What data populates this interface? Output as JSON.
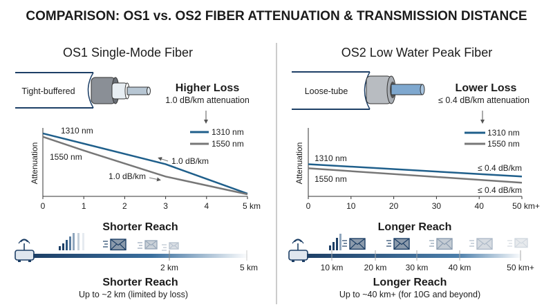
{
  "title": "COMPARISON: OS1 vs. OS2 FIBER ATTENUATION & TRANSMISSION DISTANCE",
  "colors": {
    "blue": "#1f5f8b",
    "gray": "#777777",
    "navy": "#1d3f66"
  },
  "os1": {
    "heading": "OS1 Single-Mode Fiber",
    "cable_label": "Tight-buffered",
    "loss_title": "Higher Loss",
    "loss_sub": "1.0 dB/km attenuation",
    "legend": [
      "1310 nm",
      "1550 nm"
    ],
    "line_label_1310": "1310 nm",
    "line_label_1550": "1550 nm",
    "annot_1310": "1.0 dB/km",
    "annot_1550": "1.0 dB/km",
    "y_label": "Attenuation",
    "ticks": [
      "0",
      "1",
      "2",
      "3",
      "4",
      "5 km"
    ],
    "reach_top": "Shorter Reach",
    "distance_labels": [
      "2 km",
      "5 km"
    ],
    "reach_title": "Shorter Reach",
    "reach_sub": "Up to ~2 km (limited by loss)"
  },
  "os2": {
    "heading": "OS2 Low Water Peak Fiber",
    "cable_label": "Loose-tube",
    "loss_title": "Lower Loss",
    "loss_sub": "≤ 0.4 dB/km attenuation",
    "legend": [
      "1310 nm",
      "1550 nm"
    ],
    "line_label_1310": "1310 nm",
    "line_label_1550": "1550 nm",
    "annot_1310": "≤ 0.4 dB/km",
    "annot_1550": "≤ 0.4 dB/km",
    "y_label": "Attenuation",
    "ticks": [
      "0",
      "10",
      "20",
      "30",
      "40",
      "50 km+"
    ],
    "reach_top": "Longer Reach",
    "distance_labels": [
      "10 km",
      "20 km",
      "30 km",
      "40 km",
      "50 km+"
    ],
    "reach_title": "Longer Reach",
    "reach_sub": "Up to ~40 km+ (for 10G and beyond)"
  },
  "chart_data": [
    {
      "type": "line",
      "title": "OS1 Single-Mode Fiber",
      "xlabel": "",
      "ylabel": "Attenuation",
      "xlim": [
        0,
        5
      ],
      "ylim": [
        0,
        1
      ],
      "grid": false,
      "legend": "top-right",
      "series": [
        {
          "name": "1310 nm",
          "color": "#1f5f8b",
          "x": [
            0,
            3,
            5
          ],
          "y": [
            0.92,
            0.47,
            0.04
          ]
        },
        {
          "name": "1550 nm",
          "color": "#777777",
          "x": [
            0,
            1,
            3,
            5
          ],
          "y": [
            0.87,
            0.67,
            0.29,
            0.03
          ]
        }
      ]
    },
    {
      "type": "line",
      "title": "OS2 Low Water Peak Fiber",
      "xlabel": "",
      "ylabel": "Attenuation",
      "xlim": [
        0,
        50
      ],
      "ylim": [
        0,
        1
      ],
      "grid": false,
      "legend": "top-right",
      "series": [
        {
          "name": "1310 nm",
          "color": "#1f5f8b",
          "x": [
            0,
            50
          ],
          "y": [
            0.47,
            0.29
          ]
        },
        {
          "name": "1550 nm",
          "color": "#777777",
          "x": [
            0,
            50
          ],
          "y": [
            0.41,
            0.2
          ]
        }
      ]
    }
  ]
}
